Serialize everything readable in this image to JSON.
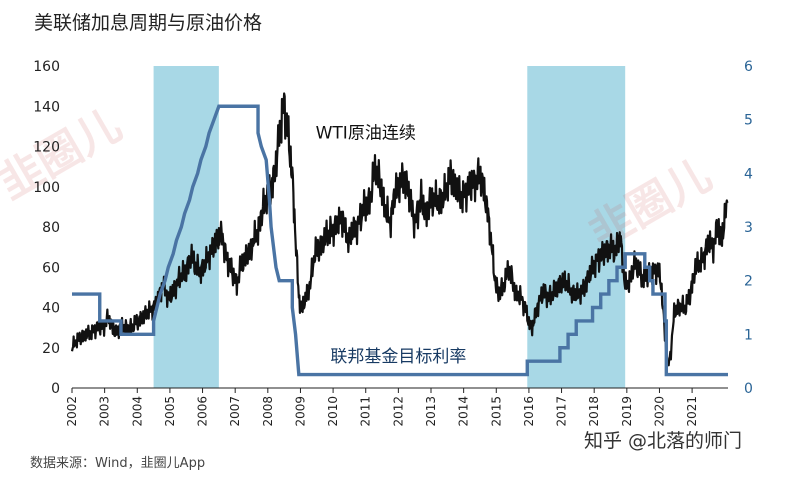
{
  "title": "美联储加息周期与原油价格",
  "source": "数据来源：Wind，韭圈儿App",
  "credit": "知乎 @北落的师门",
  "watermarks": [
    "韭圈儿",
    "韭圈儿"
  ],
  "chart_data": {
    "type": "line",
    "x_ticks": [
      "2002",
      "2003",
      "2004",
      "2005",
      "2006",
      "2007",
      "2008",
      "2009",
      "2010",
      "2011",
      "2012",
      "2013",
      "2014",
      "2015",
      "2016",
      "2017",
      "2018",
      "2019",
      "2020",
      "2021"
    ],
    "xlim": [
      2002,
      2022.1
    ],
    "y_left": {
      "ticks": [
        "0",
        "20",
        "40",
        "60",
        "80",
        "100",
        "120",
        "140",
        "160"
      ],
      "ylim": [
        0,
        160
      ]
    },
    "y_right": {
      "ticks": [
        "0",
        "1",
        "2",
        "3",
        "4",
        "5",
        "6"
      ],
      "ylim": [
        0,
        6
      ]
    },
    "shaded_periods": [
      [
        2004.5,
        2006.5
      ],
      [
        2015.95,
        2018.95
      ]
    ],
    "shade_color": "#a8d8e6",
    "series": [
      {
        "name": "WTI原油连续",
        "axis": "left",
        "color": "#111111",
        "points": [
          [
            2002.0,
            20
          ],
          [
            2002.2,
            25
          ],
          [
            2002.4,
            26
          ],
          [
            2002.7,
            29
          ],
          [
            2003.0,
            31
          ],
          [
            2003.1,
            35
          ],
          [
            2003.3,
            28
          ],
          [
            2003.5,
            30
          ],
          [
            2003.8,
            30
          ],
          [
            2004.0,
            33
          ],
          [
            2004.3,
            37
          ],
          [
            2004.6,
            42
          ],
          [
            2004.8,
            52
          ],
          [
            2004.95,
            44
          ],
          [
            2005.1,
            48
          ],
          [
            2005.3,
            55
          ],
          [
            2005.5,
            58
          ],
          [
            2005.65,
            66
          ],
          [
            2005.8,
            60
          ],
          [
            2005.95,
            58
          ],
          [
            2006.1,
            62
          ],
          [
            2006.3,
            70
          ],
          [
            2006.45,
            74
          ],
          [
            2006.6,
            76
          ],
          [
            2006.75,
            63
          ],
          [
            2006.9,
            58
          ],
          [
            2007.05,
            52
          ],
          [
            2007.2,
            62
          ],
          [
            2007.4,
            67
          ],
          [
            2007.55,
            72
          ],
          [
            2007.7,
            78
          ],
          [
            2007.85,
            90
          ],
          [
            2008.0,
            95
          ],
          [
            2008.2,
            105
          ],
          [
            2008.35,
            125
          ],
          [
            2008.5,
            142
          ],
          [
            2008.6,
            130
          ],
          [
            2008.75,
            105
          ],
          [
            2008.85,
            75
          ],
          [
            2008.95,
            45
          ],
          [
            2009.05,
            38
          ],
          [
            2009.15,
            45
          ],
          [
            2009.3,
            52
          ],
          [
            2009.45,
            68
          ],
          [
            2009.6,
            70
          ],
          [
            2009.8,
            76
          ],
          [
            2009.95,
            78
          ],
          [
            2010.1,
            80
          ],
          [
            2010.3,
            85
          ],
          [
            2010.45,
            73
          ],
          [
            2010.6,
            78
          ],
          [
            2010.8,
            82
          ],
          [
            2010.95,
            90
          ],
          [
            2011.1,
            92
          ],
          [
            2011.3,
            110
          ],
          [
            2011.45,
            102
          ],
          [
            2011.6,
            88
          ],
          [
            2011.75,
            82
          ],
          [
            2011.9,
            98
          ],
          [
            2012.0,
            100
          ],
          [
            2012.2,
            105
          ],
          [
            2012.4,
            90
          ],
          [
            2012.5,
            82
          ],
          [
            2012.7,
            94
          ],
          [
            2012.85,
            86
          ],
          [
            2013.0,
            94
          ],
          [
            2013.2,
            93
          ],
          [
            2013.4,
            95
          ],
          [
            2013.6,
            106
          ],
          [
            2013.75,
            100
          ],
          [
            2013.9,
            95
          ],
          [
            2014.0,
            96
          ],
          [
            2014.2,
            100
          ],
          [
            2014.4,
            104
          ],
          [
            2014.5,
            106
          ],
          [
            2014.65,
            96
          ],
          [
            2014.8,
            80
          ],
          [
            2014.95,
            55
          ],
          [
            2015.05,
            47
          ],
          [
            2015.2,
            50
          ],
          [
            2015.4,
            60
          ],
          [
            2015.6,
            46
          ],
          [
            2015.75,
            45
          ],
          [
            2015.9,
            40
          ],
          [
            2016.0,
            32
          ],
          [
            2016.1,
            30
          ],
          [
            2016.25,
            40
          ],
          [
            2016.45,
            48
          ],
          [
            2016.6,
            45
          ],
          [
            2016.8,
            48
          ],
          [
            2016.95,
            52
          ],
          [
            2017.1,
            53
          ],
          [
            2017.3,
            48
          ],
          [
            2017.5,
            46
          ],
          [
            2017.7,
            50
          ],
          [
            2017.9,
            58
          ],
          [
            2018.05,
            63
          ],
          [
            2018.25,
            66
          ],
          [
            2018.45,
            70
          ],
          [
            2018.65,
            68
          ],
          [
            2018.8,
            75
          ],
          [
            2018.95,
            50
          ],
          [
            2019.05,
            52
          ],
          [
            2019.25,
            63
          ],
          [
            2019.45,
            55
          ],
          [
            2019.6,
            56
          ],
          [
            2019.8,
            57
          ],
          [
            2019.95,
            60
          ],
          [
            2020.05,
            52
          ],
          [
            2020.15,
            30
          ],
          [
            2020.25,
            10
          ],
          [
            2020.35,
            18
          ],
          [
            2020.45,
            37
          ],
          [
            2020.6,
            41
          ],
          [
            2020.8,
            40
          ],
          [
            2020.95,
            47
          ],
          [
            2021.1,
            60
          ],
          [
            2021.3,
            63
          ],
          [
            2021.5,
            72
          ],
          [
            2021.65,
            70
          ],
          [
            2021.8,
            82
          ],
          [
            2021.9,
            72
          ],
          [
            2022.0,
            85
          ],
          [
            2022.08,
            92
          ]
        ]
      },
      {
        "name": "联邦基金目标利率",
        "axis": "right",
        "color": "#4a74a4",
        "points": [
          [
            2002.0,
            1.75
          ],
          [
            2002.85,
            1.75
          ],
          [
            2002.85,
            1.25
          ],
          [
            2003.5,
            1.25
          ],
          [
            2003.5,
            1.0
          ],
          [
            2004.5,
            1.0
          ],
          [
            2004.5,
            1.25
          ],
          [
            2004.6,
            1.5
          ],
          [
            2004.7,
            1.75
          ],
          [
            2004.85,
            2.0
          ],
          [
            2004.95,
            2.25
          ],
          [
            2005.1,
            2.5
          ],
          [
            2005.2,
            2.75
          ],
          [
            2005.35,
            3.0
          ],
          [
            2005.45,
            3.25
          ],
          [
            2005.6,
            3.5
          ],
          [
            2005.7,
            3.75
          ],
          [
            2005.85,
            4.0
          ],
          [
            2005.95,
            4.25
          ],
          [
            2006.1,
            4.5
          ],
          [
            2006.2,
            4.75
          ],
          [
            2006.35,
            5.0
          ],
          [
            2006.5,
            5.25
          ],
          [
            2007.7,
            5.25
          ],
          [
            2007.7,
            4.75
          ],
          [
            2007.8,
            4.5
          ],
          [
            2007.95,
            4.25
          ],
          [
            2008.05,
            3.5
          ],
          [
            2008.1,
            3.0
          ],
          [
            2008.25,
            2.25
          ],
          [
            2008.35,
            2.0
          ],
          [
            2008.75,
            2.0
          ],
          [
            2008.75,
            1.5
          ],
          [
            2008.85,
            1.0
          ],
          [
            2008.95,
            0.25
          ],
          [
            2015.95,
            0.25
          ],
          [
            2015.95,
            0.5
          ],
          [
            2016.95,
            0.5
          ],
          [
            2016.95,
            0.75
          ],
          [
            2017.2,
            0.75
          ],
          [
            2017.2,
            1.0
          ],
          [
            2017.45,
            1.0
          ],
          [
            2017.45,
            1.25
          ],
          [
            2017.95,
            1.25
          ],
          [
            2017.95,
            1.5
          ],
          [
            2018.2,
            1.5
          ],
          [
            2018.2,
            1.75
          ],
          [
            2018.45,
            1.75
          ],
          [
            2018.45,
            2.0
          ],
          [
            2018.7,
            2.0
          ],
          [
            2018.7,
            2.25
          ],
          [
            2018.95,
            2.25
          ],
          [
            2018.95,
            2.5
          ],
          [
            2019.55,
            2.5
          ],
          [
            2019.55,
            2.25
          ],
          [
            2019.7,
            2.25
          ],
          [
            2019.7,
            2.0
          ],
          [
            2019.8,
            2.0
          ],
          [
            2019.8,
            1.75
          ],
          [
            2020.17,
            1.75
          ],
          [
            2020.17,
            1.25
          ],
          [
            2020.21,
            1.25
          ],
          [
            2020.21,
            0.25
          ],
          [
            2022.1,
            0.25
          ]
        ]
      }
    ],
    "annotations": [
      {
        "text": "WTI原油连续",
        "x": 2011.0,
        "y": 124
      },
      {
        "text": "联邦基金目标利率",
        "x": 2012.0,
        "y": 13
      }
    ],
    "grid": false,
    "legend": "none"
  }
}
